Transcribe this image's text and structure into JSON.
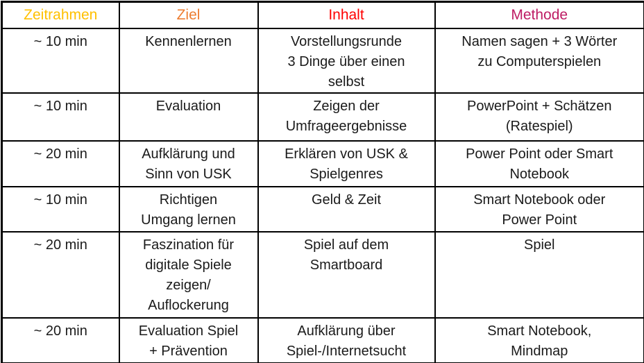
{
  "table": {
    "columns": [
      {
        "key": "zeitrahmen",
        "label": "Zeitrahmen",
        "color": "#FFC000"
      },
      {
        "key": "ziel",
        "label": "Ziel",
        "color": "#ED7D31"
      },
      {
        "key": "inhalt",
        "label": "Inhalt",
        "color": "#FF0000"
      },
      {
        "key": "methode",
        "label": "Methode",
        "color": "#BE1C64"
      }
    ],
    "rows": [
      {
        "zeitrahmen": "~ 10 min",
        "ziel": "Kennenlernen",
        "inhalt": "Vorstellungsrunde\n3 Dinge über einen\nselbst",
        "methode": "Namen sagen + 3 Wörter\nzu Computerspielen"
      },
      {
        "zeitrahmen": "~ 10 min",
        "ziel": "Evaluation",
        "inhalt": "Zeigen der\nUmfrageergebnisse",
        "methode": "PowerPoint + Schätzen\n(Ratespiel)"
      },
      {
        "zeitrahmen": "~ 20 min",
        "ziel": "Aufklärung und\nSinn von USK",
        "inhalt": "Erklären von USK &\nSpielgenres",
        "methode": "Power Point oder Smart\nNotebook"
      },
      {
        "zeitrahmen": "~ 10 min",
        "ziel": "Richtigen\nUmgang lernen",
        "inhalt": "Geld & Zeit",
        "methode": "Smart Notebook oder\nPower Point"
      },
      {
        "zeitrahmen": "~ 20 min",
        "ziel": "Faszination für\ndigitale Spiele\nzeigen/\nAuflockerung",
        "inhalt": "Spiel auf dem\nSmartboard",
        "methode": "Spiel"
      },
      {
        "zeitrahmen": "~ 20 min",
        "ziel": "Evaluation Spiel\n+ Prävention",
        "inhalt": "Aufklärung über\nSpiel-/Internetsucht",
        "methode": "Smart Notebook,\nMindmap"
      }
    ]
  }
}
